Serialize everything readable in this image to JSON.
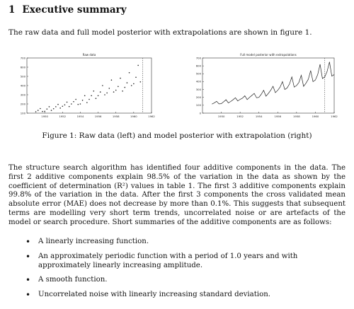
{
  "section": {
    "number": "1",
    "title": "Executive summary"
  },
  "intro": "The raw data and full model posterior with extrapolations are shown in figure 1.",
  "chart_data": [
    {
      "type": "scatter",
      "title": "Raw data",
      "xlim": [
        1948,
        1962
      ],
      "ylim": [
        100,
        700
      ],
      "xticks": [
        "1950",
        "1952",
        "1954",
        "1956",
        "1958",
        "1960",
        "1962"
      ],
      "yticks": [
        "100",
        "200",
        "300",
        "400",
        "500",
        "600",
        "700"
      ],
      "vline": 1961,
      "x": [
        1949.0,
        1949.25,
        1949.5,
        1949.75,
        1950.0,
        1950.25,
        1950.5,
        1950.75,
        1951.0,
        1951.25,
        1951.5,
        1951.75,
        1952.0,
        1952.25,
        1952.5,
        1952.75,
        1953.0,
        1953.25,
        1953.5,
        1953.75,
        1954.0,
        1954.25,
        1954.5,
        1954.75,
        1955.0,
        1955.25,
        1955.5,
        1955.75,
        1956.0,
        1956.25,
        1956.5,
        1956.75,
        1957.0,
        1957.25,
        1957.5,
        1957.75,
        1958.0,
        1958.25,
        1958.5,
        1958.75,
        1959.0,
        1959.25,
        1959.5,
        1959.75,
        1960.0,
        1960.25,
        1960.5,
        1960.75
      ],
      "y": [
        115,
        130,
        150,
        118,
        120,
        145,
        170,
        130,
        148,
        170,
        195,
        155,
        175,
        190,
        220,
        172,
        200,
        225,
        250,
        195,
        200,
        240,
        290,
        215,
        250,
        290,
        340,
        260,
        290,
        330,
        400,
        300,
        320,
        370,
        460,
        330,
        350,
        390,
        480,
        340,
        380,
        430,
        540,
        400,
        420,
        490,
        620,
        440
      ]
    },
    {
      "type": "line",
      "title": "Full model posterior with extrapolations",
      "xlim": [
        1948,
        1962
      ],
      "ylim": [
        0,
        700
      ],
      "xticks": [
        "1950",
        "1952",
        "1954",
        "1956",
        "1958",
        "1960",
        "1962"
      ],
      "yticks": [
        "0",
        "100",
        "200",
        "300",
        "400",
        "500",
        "600",
        "700"
      ],
      "vline": 1961,
      "x": [
        1949.0,
        1949.25,
        1949.5,
        1949.75,
        1950.0,
        1950.25,
        1950.5,
        1950.75,
        1951.0,
        1951.25,
        1951.5,
        1951.75,
        1952.0,
        1952.25,
        1952.5,
        1952.75,
        1953.0,
        1953.25,
        1953.5,
        1953.75,
        1954.0,
        1954.25,
        1954.5,
        1954.75,
        1955.0,
        1955.25,
        1955.5,
        1955.75,
        1956.0,
        1956.25,
        1956.5,
        1956.75,
        1957.0,
        1957.25,
        1957.5,
        1957.75,
        1958.0,
        1958.25,
        1958.5,
        1958.75,
        1959.0,
        1959.25,
        1959.5,
        1959.75,
        1960.0,
        1960.25,
        1960.5,
        1960.75,
        1961.0,
        1961.25,
        1961.5,
        1961.75,
        1962.0
      ],
      "y": [
        115,
        130,
        150,
        118,
        120,
        145,
        170,
        130,
        148,
        170,
        195,
        155,
        175,
        190,
        220,
        172,
        200,
        225,
        250,
        195,
        200,
        240,
        290,
        215,
        250,
        290,
        340,
        260,
        290,
        330,
        400,
        300,
        320,
        370,
        460,
        330,
        350,
        390,
        480,
        340,
        380,
        430,
        540,
        400,
        420,
        490,
        620,
        440,
        460,
        530,
        650,
        470,
        490
      ]
    }
  ],
  "caption": "Figure 1: Raw data (left) and model posterior with extrapolation (right)",
  "paragraph": "The structure search algorithm has identified four additive components in the data. The first 2 additive components explain 98.5% of the variation in the data as shown by the coefficient of determination (R²) values in table 1. The first 3 additive components explain 99.8% of the variation in the data. After the first 3 components the cross validated mean absolute error (MAE) does not decrease by more than 0.1%. This suggests that subsequent terms are modelling very short term trends, uncorrelated noise or are artefacts of the model or search procedure. Short summaries of the additive components are as follows:",
  "components": [
    "A linearly increasing function.",
    "An approximately periodic function with a period of 1.0 years and with approximately linearly increasing amplitude.",
    "A smooth function.",
    "Uncorrelated noise with linearly increasing standard deviation."
  ]
}
